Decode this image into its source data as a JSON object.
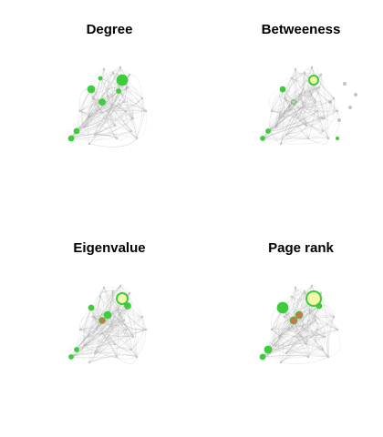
{
  "panels": [
    {
      "title": "Degree",
      "style": "degree"
    },
    {
      "title": "Betweeness",
      "style": "betweenness"
    },
    {
      "title": "Eigenvalue",
      "style": "eigen"
    },
    {
      "title": "Page rank",
      "style": "pagerank"
    }
  ],
  "colors": {
    "node_green": "#3ccc3c",
    "node_green_light": "#a6e98a",
    "node_yellow": "#f4f7a8",
    "node_gray": "#c8c2c8",
    "node_pink": "#d4b8cc",
    "node_orange": "#c8764a",
    "edge_gray": "#7a7a7a"
  }
}
